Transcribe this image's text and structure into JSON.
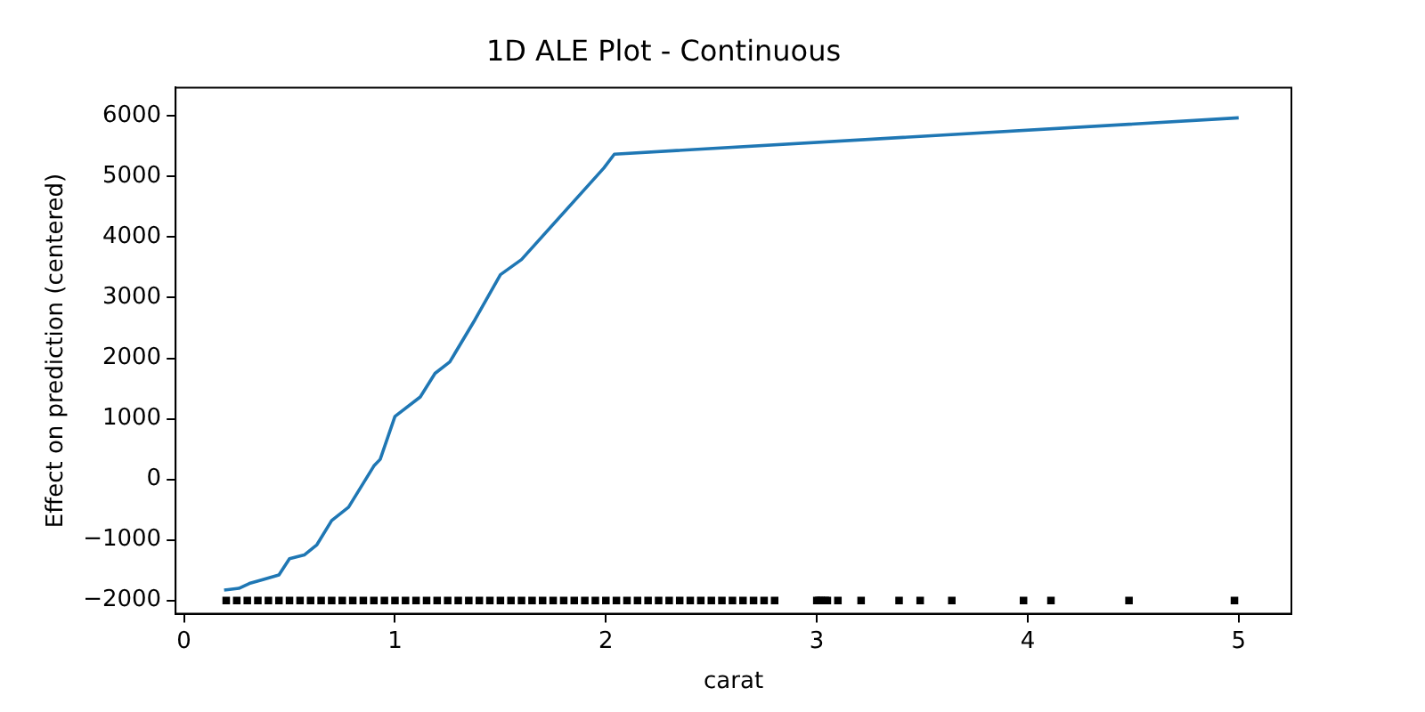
{
  "chart_data": {
    "type": "line",
    "title": "1D ALE Plot - Continuous",
    "xlabel": "carat",
    "ylabel": "Effect on prediction (centered)",
    "xlim": [
      -0.04,
      5.25
    ],
    "xticks": [
      0,
      1,
      2,
      3,
      4,
      5
    ],
    "ylim": [
      -2220,
      6470
    ],
    "yticks": [
      -2000,
      -1000,
      0,
      1000,
      2000,
      3000,
      4000,
      5000,
      6000
    ],
    "grid": false,
    "legend": false,
    "line_style": "solid",
    "series": [
      {
        "marker": "none",
        "color": "#1f77b4",
        "x": [
          0.19,
          0.26,
          0.31,
          0.37,
          0.45,
          0.5,
          0.57,
          0.63,
          0.7,
          0.78,
          0.9,
          0.93,
          1.0,
          1.12,
          1.19,
          1.26,
          1.38,
          1.5,
          1.6,
          1.99,
          2.04,
          5.0
        ],
        "values": [
          -1830,
          -1800,
          -1720,
          -1660,
          -1580,
          -1310,
          -1250,
          -1080,
          -680,
          -460,
          220,
          330,
          1040,
          1360,
          1750,
          1940,
          2640,
          3380,
          3630,
          5140,
          5370,
          5970
        ]
      },
      {
        "type": "scatter",
        "marker": "square",
        "color": "#000000",
        "x": [
          0.2,
          0.25,
          0.3,
          0.35,
          0.4,
          0.45,
          0.5,
          0.55,
          0.6,
          0.65,
          0.7,
          0.75,
          0.8,
          0.85,
          0.9,
          0.95,
          1.0,
          1.05,
          1.1,
          1.15,
          1.2,
          1.25,
          1.3,
          1.35,
          1.4,
          1.45,
          1.5,
          1.55,
          1.6,
          1.65,
          1.7,
          1.75,
          1.8,
          1.85,
          1.9,
          1.95,
          2.0,
          2.05,
          2.1,
          2.15,
          2.2,
          2.25,
          2.3,
          2.35,
          2.4,
          2.45,
          2.5,
          2.55,
          2.6,
          2.65,
          2.7,
          2.75,
          2.8,
          3.0,
          3.01,
          3.02,
          3.04,
          3.05,
          3.1,
          3.21,
          3.39,
          3.49,
          3.64,
          3.98,
          4.11,
          4.48,
          4.98
        ],
        "values": [
          -2000,
          -2000,
          -2000,
          -2000,
          -2000,
          -2000,
          -2000,
          -2000,
          -2000,
          -2000,
          -2000,
          -2000,
          -2000,
          -2000,
          -2000,
          -2000,
          -2000,
          -2000,
          -2000,
          -2000,
          -2000,
          -2000,
          -2000,
          -2000,
          -2000,
          -2000,
          -2000,
          -2000,
          -2000,
          -2000,
          -2000,
          -2000,
          -2000,
          -2000,
          -2000,
          -2000,
          -2000,
          -2000,
          -2000,
          -2000,
          -2000,
          -2000,
          -2000,
          -2000,
          -2000,
          -2000,
          -2000,
          -2000,
          -2000,
          -2000,
          -2000,
          -2000,
          -2000,
          -2000,
          -2000,
          -2000,
          -2000,
          -2000,
          -2000,
          -2000,
          -2000,
          -2000,
          -2000,
          -2000,
          -2000,
          -2000,
          -2000
        ]
      }
    ]
  }
}
